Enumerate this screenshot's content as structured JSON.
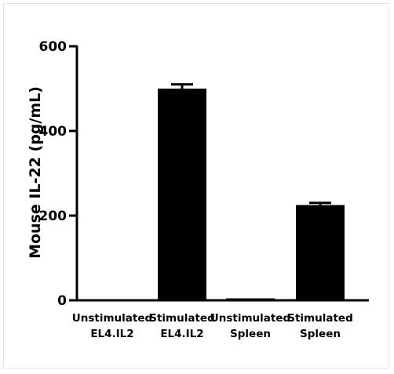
{
  "chart_data": {
    "type": "bar",
    "title": "",
    "xlabel": "",
    "ylabel": "Mouse IL-22 (pg/mL)",
    "ylim": [
      0,
      600
    ],
    "yticks": [
      0,
      200,
      400,
      600
    ],
    "ytick_labels": [
      "0",
      "200",
      "400",
      "600"
    ],
    "grid": false,
    "legend": "none",
    "categories": [
      [
        "Unstimulated",
        "EL4.IL2"
      ],
      [
        "Stimulated",
        "EL4.IL2"
      ],
      [
        "Unstimulated",
        "Spleen"
      ],
      [
        "Stimulated",
        "Spleen"
      ]
    ],
    "values": [
      0,
      500,
      3,
      225
    ],
    "errors": [
      0,
      10,
      0,
      5
    ],
    "bar_color": "#000000",
    "axis_color": "#000000"
  }
}
